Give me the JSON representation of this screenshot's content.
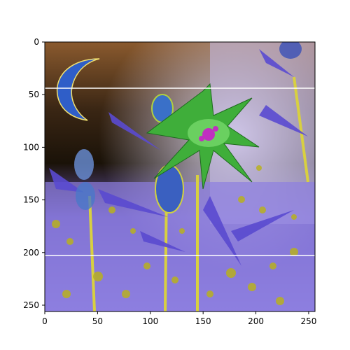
{
  "figure": {
    "kind": "image-plot",
    "image_size": [
      256,
      256
    ],
    "xlim": [
      0,
      256
    ],
    "ylim": [
      256,
      0
    ],
    "x_ticks": [
      "0",
      "50",
      "100",
      "150",
      "200",
      "250"
    ],
    "y_ticks": [
      "0",
      "50",
      "100",
      "150",
      "200",
      "250"
    ],
    "hlines": [
      43,
      202
    ],
    "hline_color": "#ffffff",
    "image_description_colors": {
      "sky_top": "#8a5a2e",
      "dark_bg": "#1a1208",
      "lavender": "#8d7fe0",
      "violet": "#5a4ad0",
      "pale": "#d8d0f0",
      "green": "#3fae3a",
      "yellow": "#b8b020",
      "moon_blue": "#2f5ec8",
      "magenta": "#c030c0"
    }
  }
}
